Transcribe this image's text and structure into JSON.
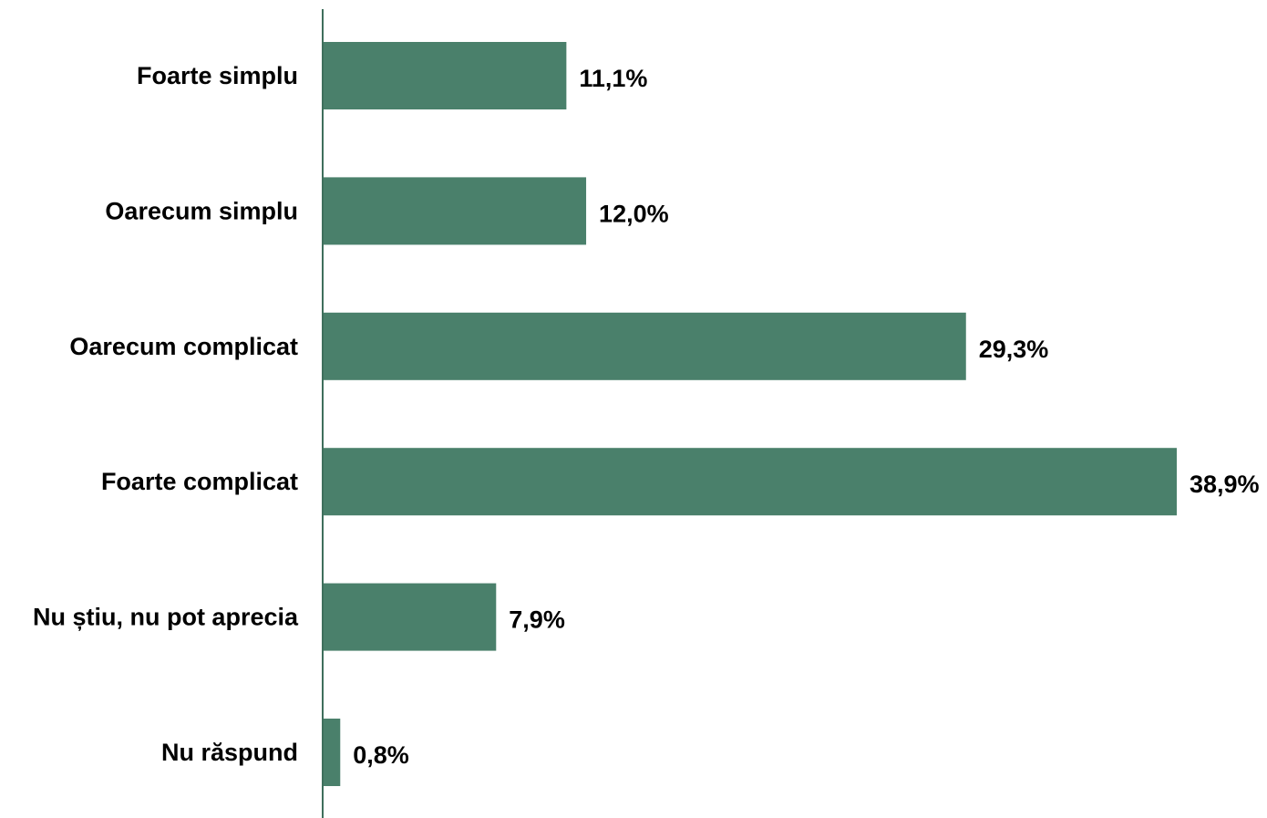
{
  "chart_data": {
    "type": "bar",
    "orientation": "horizontal",
    "categories": [
      "Foarte simplu",
      "Oarecum simplu",
      "Oarecum complicat",
      "Foarte complicat",
      "Nu știu, nu pot aprecia",
      "Nu răspund"
    ],
    "values": [
      11.1,
      12.0,
      29.3,
      38.9,
      7.9,
      0.8
    ],
    "value_labels": [
      "11,1%",
      "12,0%",
      "29,3%",
      "38,9%",
      "7,9%",
      "0,8%"
    ],
    "unit": "%",
    "xlim": [
      0,
      38.9
    ],
    "grid": false,
    "legend": "none",
    "colors": {
      "bar": "#4a806b",
      "axis": "#3f6f5c",
      "text": "#000000"
    }
  }
}
